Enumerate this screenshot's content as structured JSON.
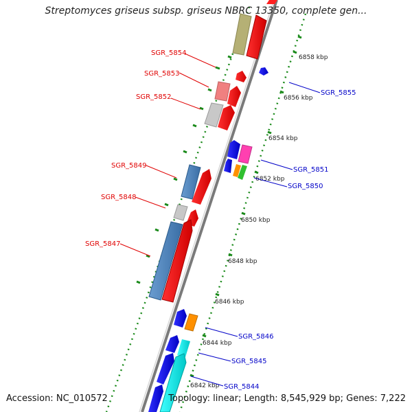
{
  "title": "Streptomyces griseus subsp. griseus NBRC 13350, complete gen...",
  "footer": {
    "accession_label": "Accession:",
    "accession": "NC_010572",
    "topology_label": "Topology:",
    "topology": "linear;",
    "length_label": "Length:",
    "length": "8,545,929 bp;",
    "genes_label": "Genes:",
    "genes": "7,222"
  },
  "colors": {
    "backbone": "#808080",
    "left_label": "#e00000",
    "right_label": "#0000c8",
    "tick": "#1a8a1a"
  },
  "ticks": [
    "6842 kbp",
    "6844 kbp",
    "6846 kbp",
    "6848 kbp",
    "6850 kbp",
    "6852 kbp",
    "6854 kbp",
    "6856 kbp",
    "6858 kbp"
  ],
  "labels_left": [
    {
      "text": "SGR_5854"
    },
    {
      "text": "SGR_5853"
    },
    {
      "text": "SGR_5852"
    },
    {
      "text": "SGR_5849"
    },
    {
      "text": "SGR_5848"
    },
    {
      "text": "SGR_5847"
    }
  ],
  "labels_right": [
    {
      "text": "SGR_5855"
    },
    {
      "text": "SGR_5851"
    },
    {
      "text": "SGR_5850"
    },
    {
      "text": "SGR_5846"
    },
    {
      "text": "SGR_5845"
    },
    {
      "text": "SGR_5844"
    }
  ]
}
